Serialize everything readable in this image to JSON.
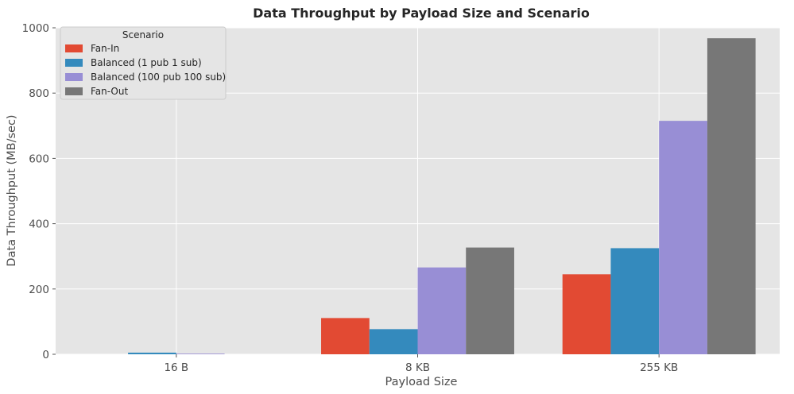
{
  "chart_data": {
    "type": "bar",
    "title": "Data Throughput by Payload Size and Scenario",
    "xlabel": "Payload Size",
    "ylabel": "Data Throughput (MB/sec)",
    "categories": [
      "16 B",
      "8 KB",
      "255 KB"
    ],
    "ylim": [
      0,
      1000
    ],
    "yticks": [
      0,
      200,
      400,
      600,
      800,
      1000
    ],
    "grid": true,
    "legend": {
      "title": "Scenario",
      "placement": "top-left"
    },
    "series": [
      {
        "name": "Fan-In",
        "color": "#E24A33",
        "values": [
          0,
          111,
          245
        ]
      },
      {
        "name": "Balanced (1 pub 1 sub)",
        "color": "#348ABD",
        "values": [
          5,
          77,
          325
        ]
      },
      {
        "name": "Balanced (100 pub 100 sub)",
        "color": "#988ED5",
        "values": [
          2,
          266,
          715
        ]
      },
      {
        "name": "Fan-Out",
        "color": "#777777",
        "values": [
          0,
          327,
          968
        ]
      }
    ]
  }
}
